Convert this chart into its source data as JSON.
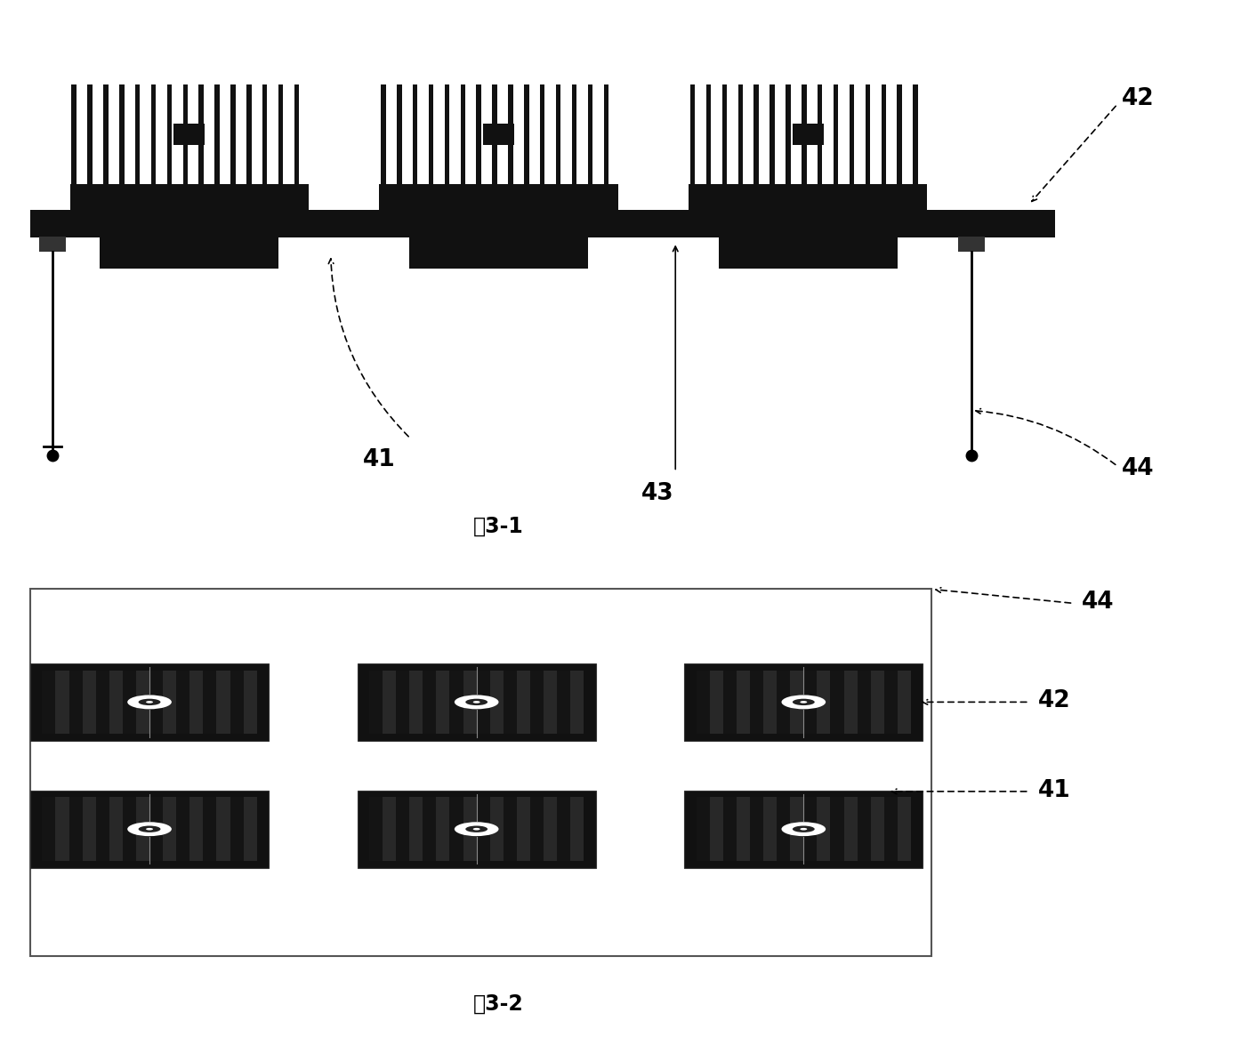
{
  "bg_color": "#ffffff",
  "fig1_label": "图3-1",
  "fig2_label": "图3-2",
  "heatsink_color": "#111111",
  "board_color": "#111111",
  "module_color": "#222222",
  "panel_border": "#666666",
  "transistor_dark": "#1a1a1a",
  "transistor_mid": "#3a3a3a",
  "transistor_stripe_light": "#2a2a2a",
  "transistor_stripe_dark": "#111111"
}
